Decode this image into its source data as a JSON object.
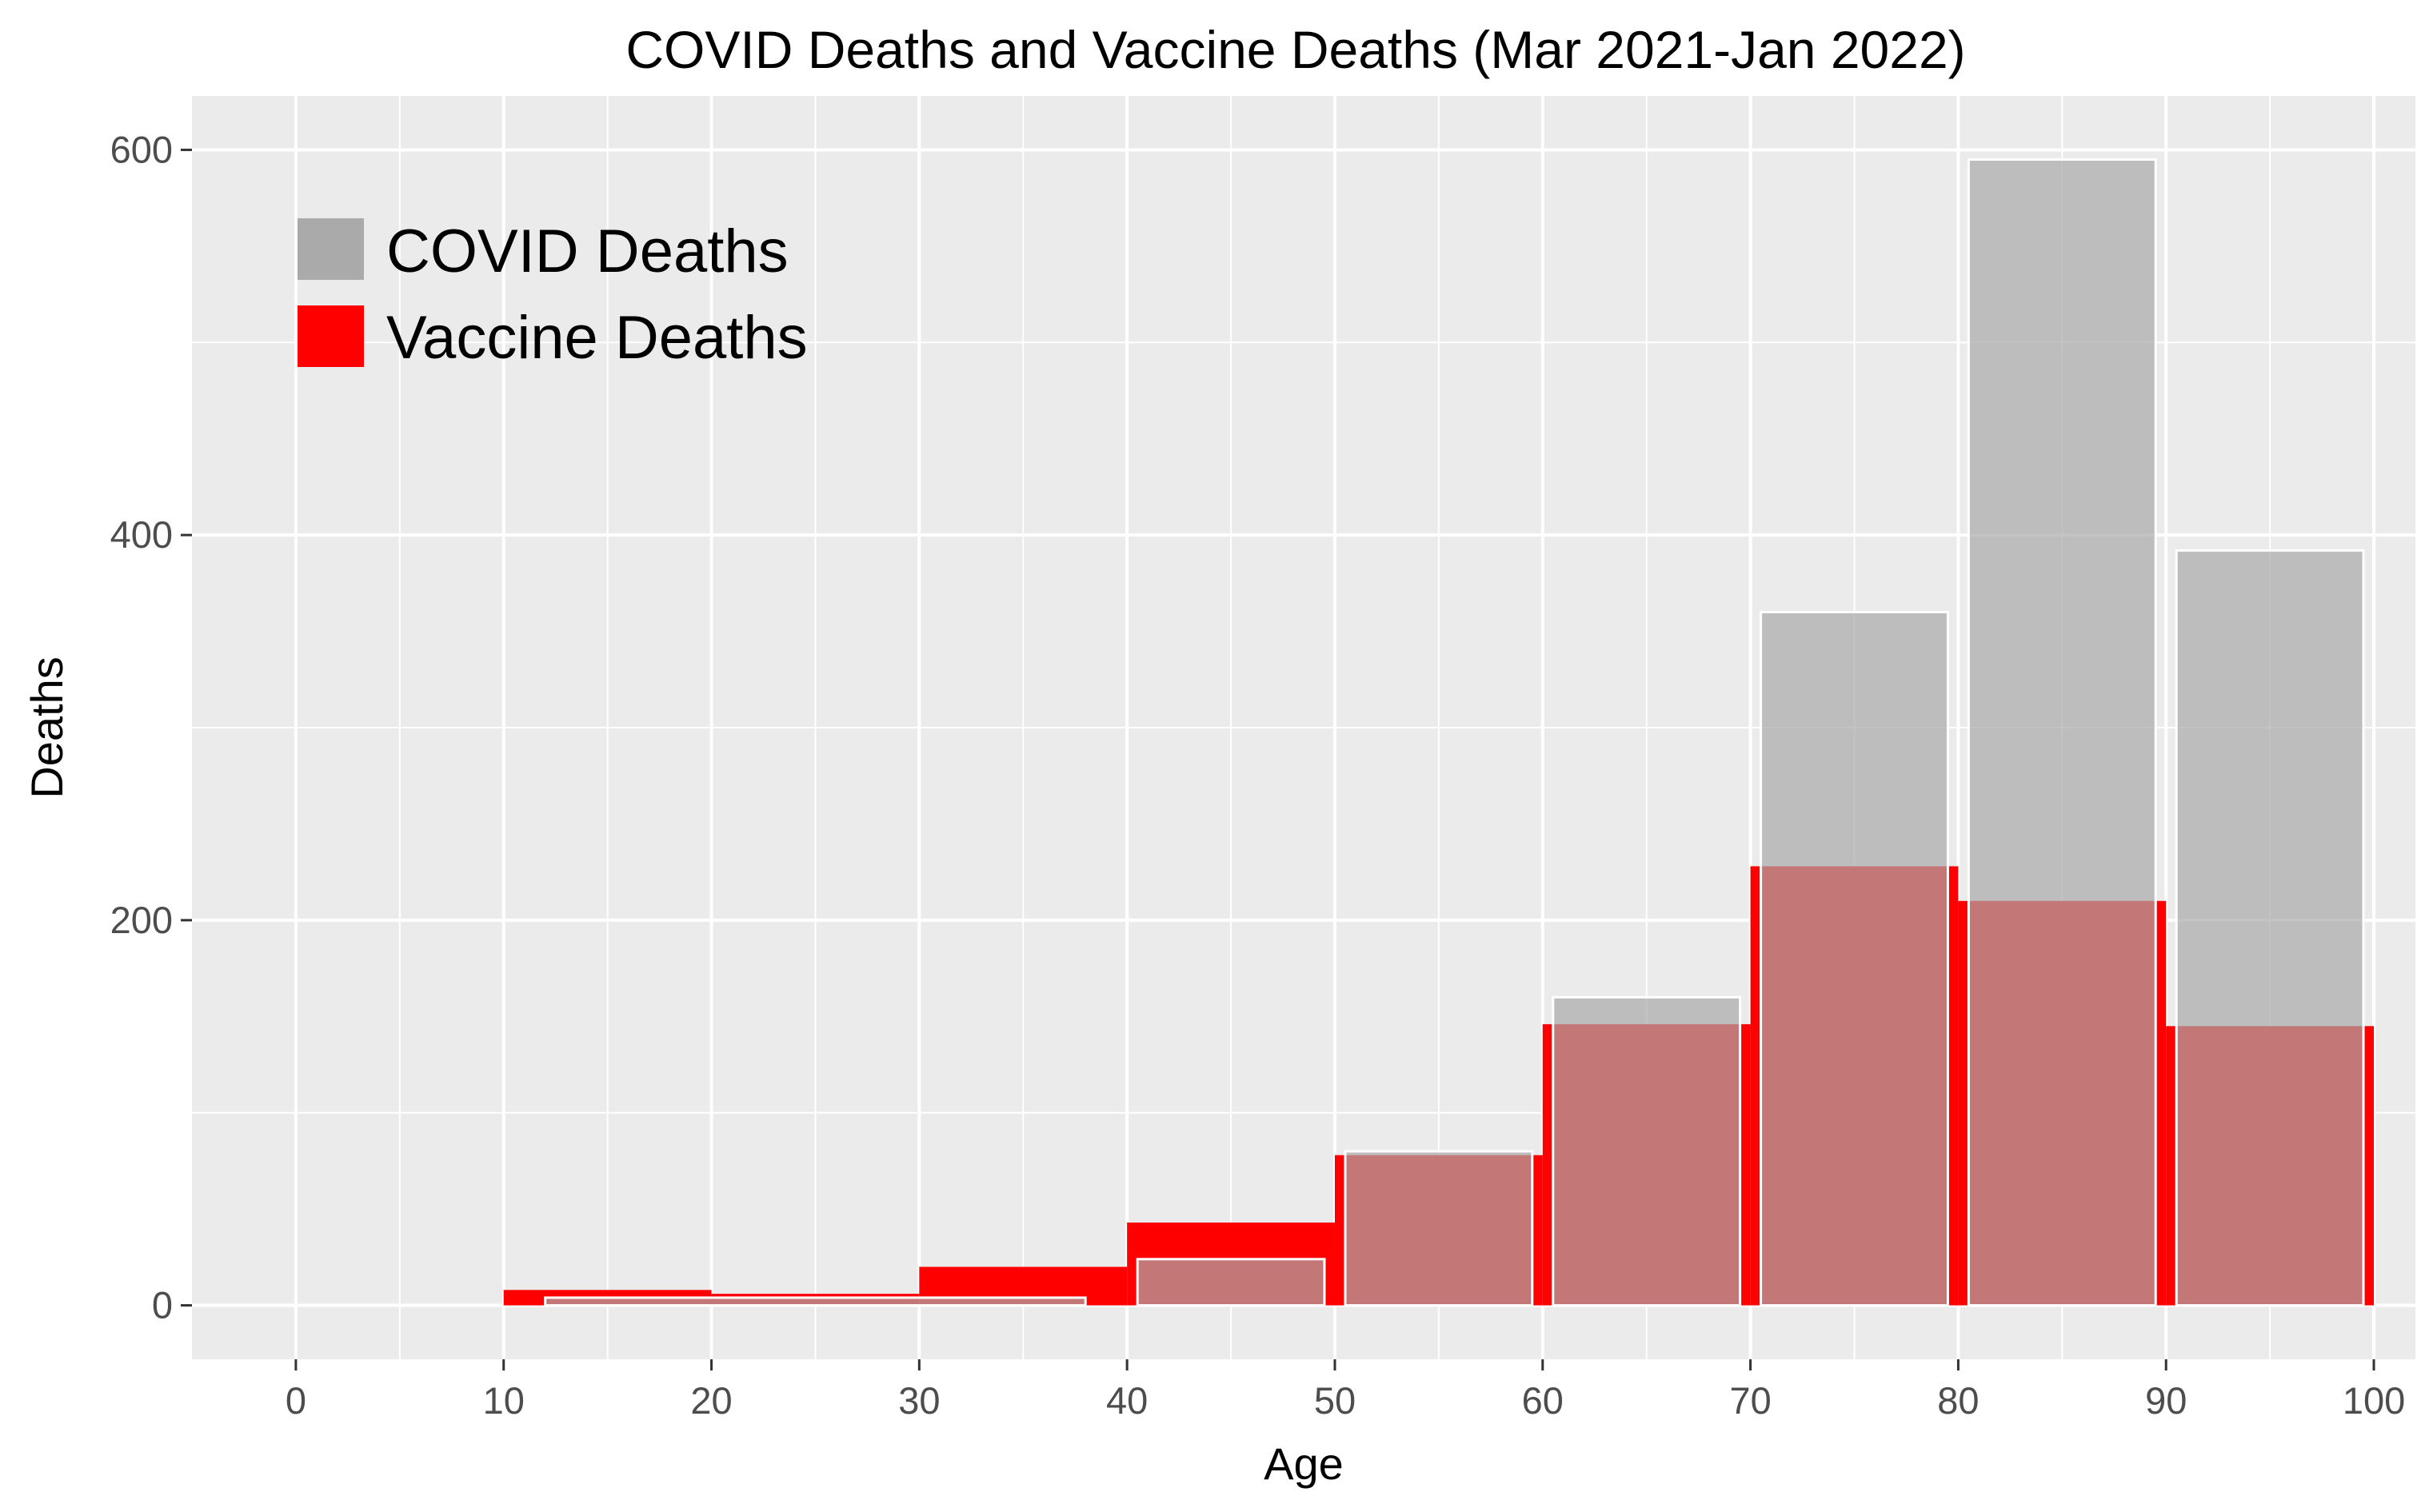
{
  "chart_data": {
    "type": "bar",
    "title": "COVID Deaths and Vaccine Deaths (Mar 2021-Jan 2022)",
    "xlabel": "Age",
    "ylabel": "Deaths",
    "xlim": [
      -5,
      102
    ],
    "ylim": [
      -28,
      628
    ],
    "xticks": [
      0,
      10,
      20,
      30,
      40,
      50,
      60,
      70,
      80,
      90,
      100
    ],
    "yticks": [
      0,
      200,
      400,
      600
    ],
    "grid": true,
    "legend_position": "top-left",
    "series": [
      {
        "name": "COVID Deaths",
        "color": "#aaaaaa",
        "bins": [
          {
            "x0": 12,
            "x1": 38,
            "value": 4
          },
          {
            "x0": 40.5,
            "x1": 49.5,
            "value": 24
          },
          {
            "x0": 50.5,
            "x1": 59.5,
            "value": 80
          },
          {
            "x0": 60.5,
            "x1": 69.5,
            "value": 160
          },
          {
            "x0": 70.5,
            "x1": 79.5,
            "value": 360
          },
          {
            "x0": 80.5,
            "x1": 89.5,
            "value": 595
          },
          {
            "x0": 90.5,
            "x1": 99.5,
            "value": 392
          }
        ]
      },
      {
        "name": "Vaccine Deaths",
        "color": "#ff0000",
        "bins": [
          {
            "x0": 10,
            "x1": 20,
            "value": 8
          },
          {
            "x0": 20,
            "x1": 30,
            "value": 6
          },
          {
            "x0": 30,
            "x1": 40,
            "value": 20
          },
          {
            "x0": 40,
            "x1": 50,
            "value": 43
          },
          {
            "x0": 50,
            "x1": 60,
            "value": 78
          },
          {
            "x0": 60,
            "x1": 70,
            "value": 146
          },
          {
            "x0": 70,
            "x1": 80,
            "value": 228
          },
          {
            "x0": 80,
            "x1": 90,
            "value": 210
          },
          {
            "x0": 90,
            "x1": 100,
            "value": 145
          }
        ]
      }
    ]
  }
}
